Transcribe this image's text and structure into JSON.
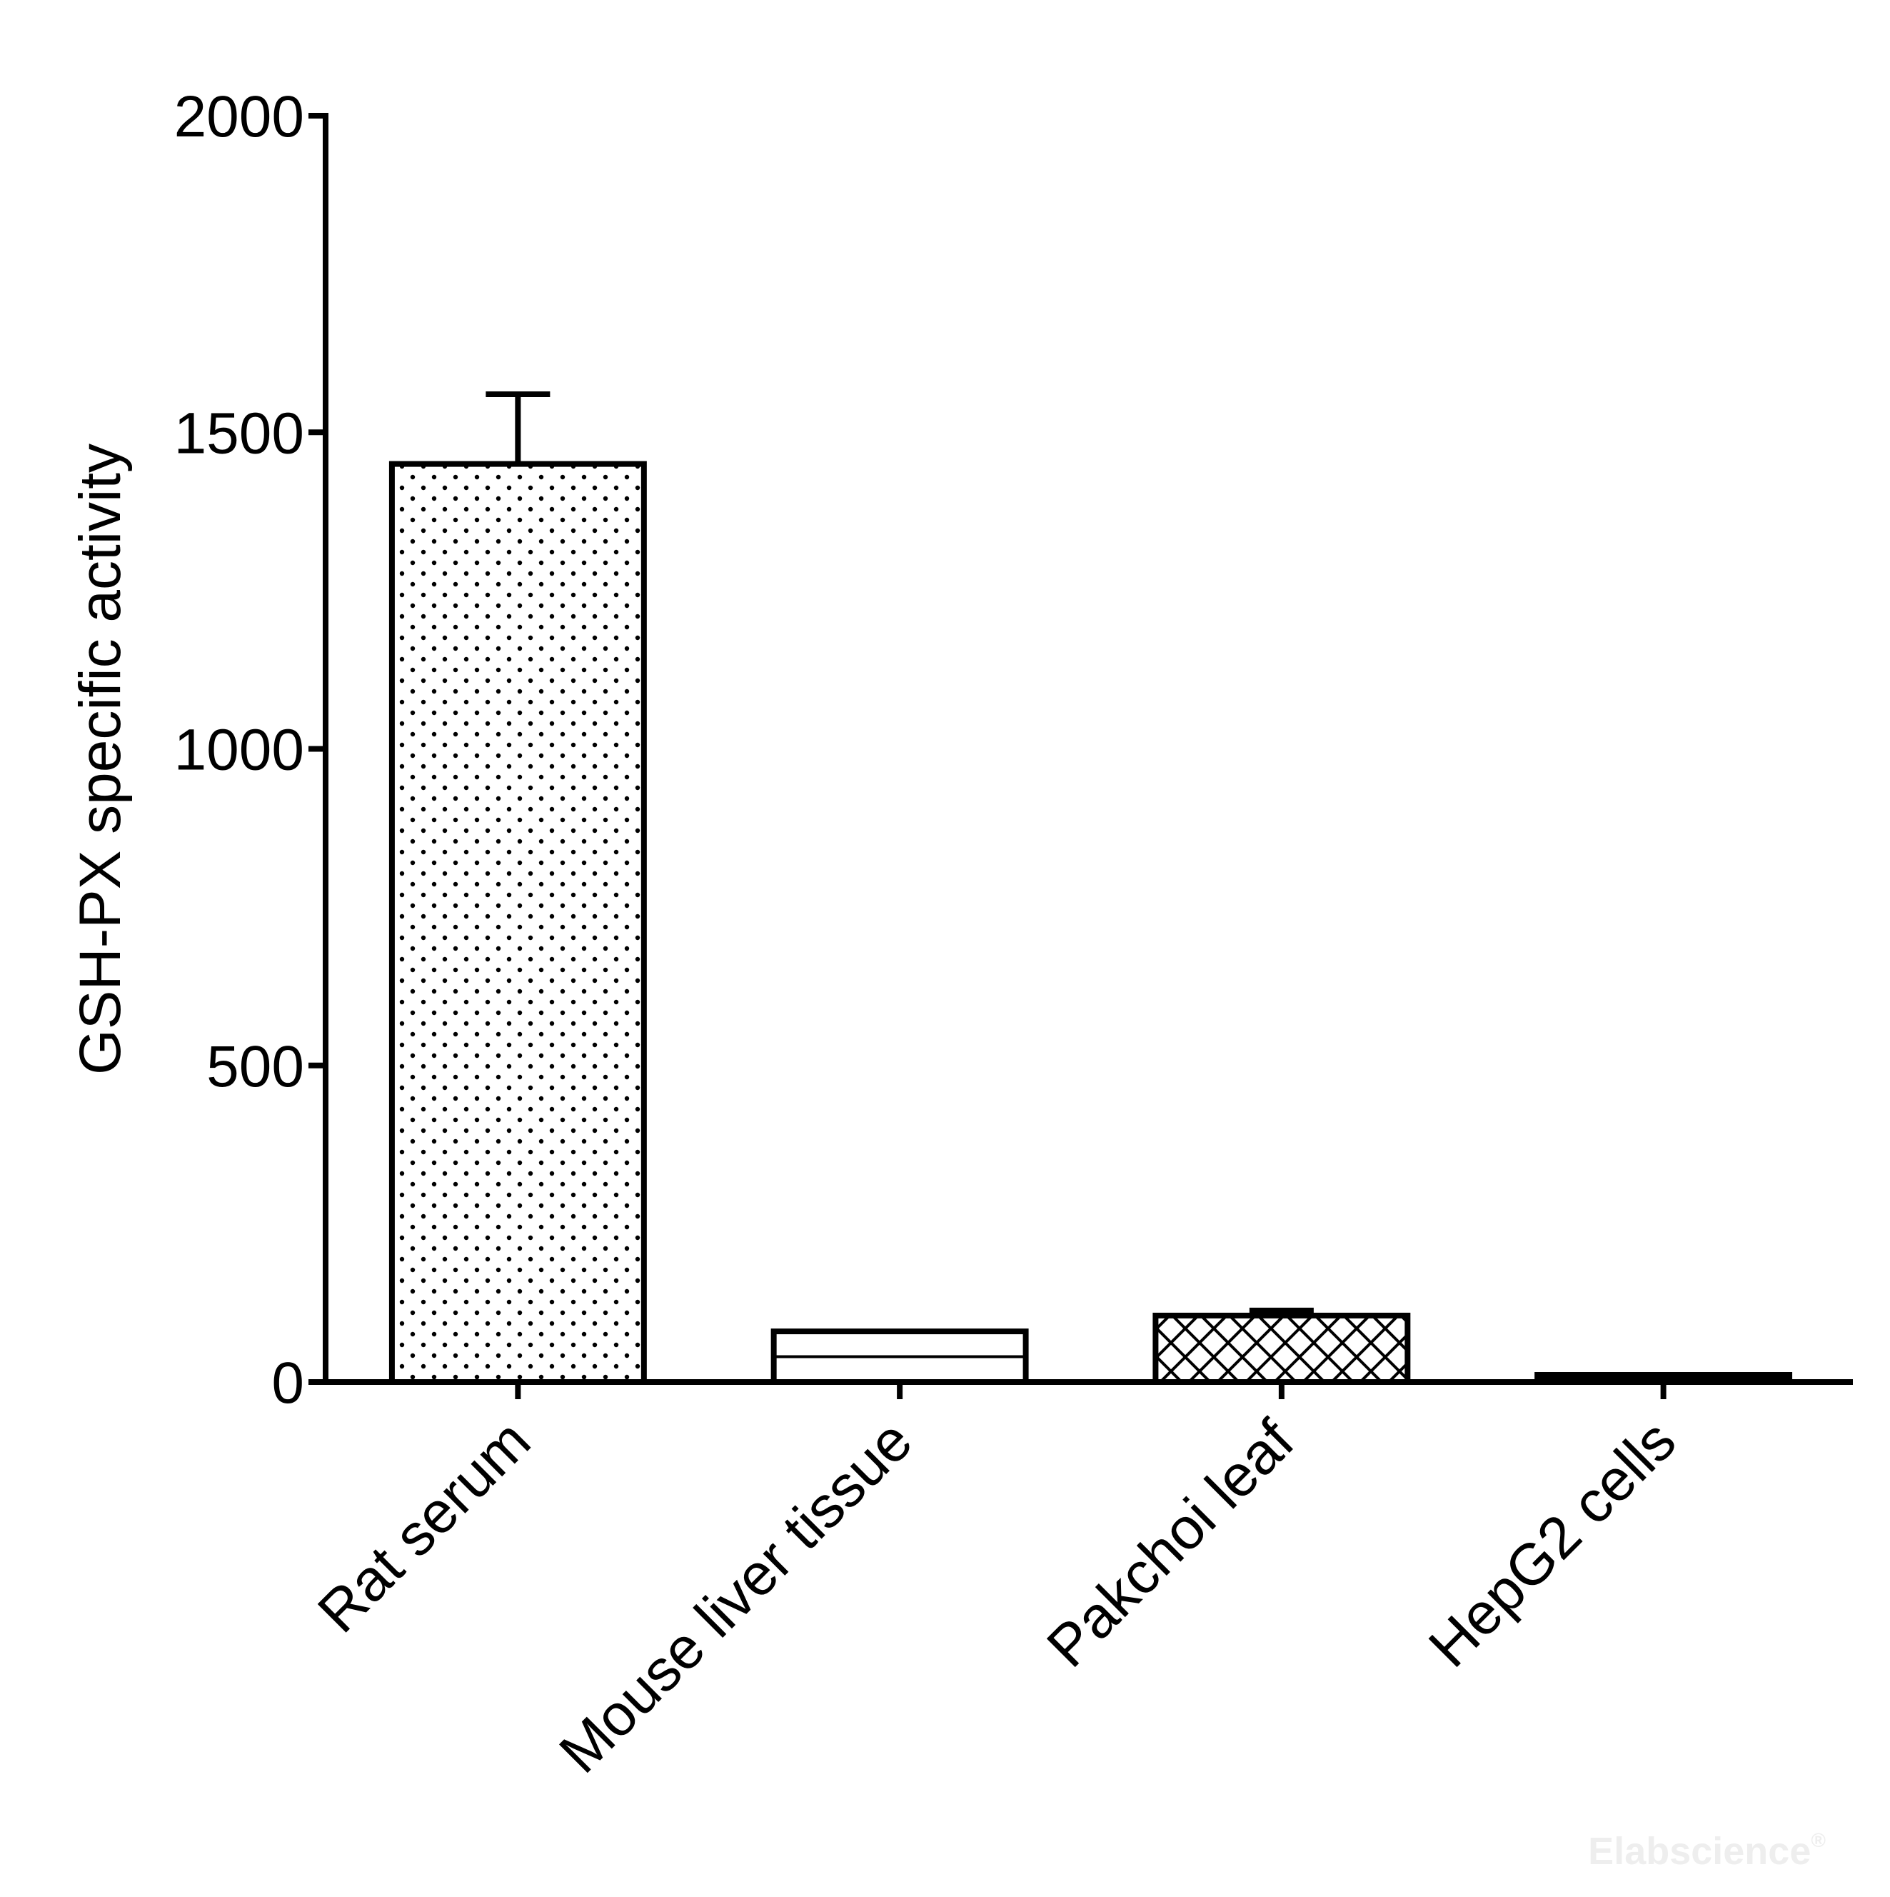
{
  "chart_data": {
    "type": "bar",
    "title": "",
    "xlabel": "",
    "ylabel": "GSH-PX specific activity",
    "ylim": [
      0,
      2000
    ],
    "yticks": [
      0,
      500,
      1000,
      1500,
      2000
    ],
    "categories": [
      "Rat serum",
      "Mouse liver tissue",
      "Pakchoi leaf",
      "HepG2 cells"
    ],
    "values": [
      1450,
      80,
      105,
      8
    ],
    "errors": [
      110,
      0,
      8,
      2
    ],
    "patterns": [
      "dots",
      "horizontal-line",
      "crosshatch",
      "solid-black"
    ],
    "grid": false,
    "legend": "none"
  },
  "watermark": "Elabscience",
  "watermark_mark": "®"
}
